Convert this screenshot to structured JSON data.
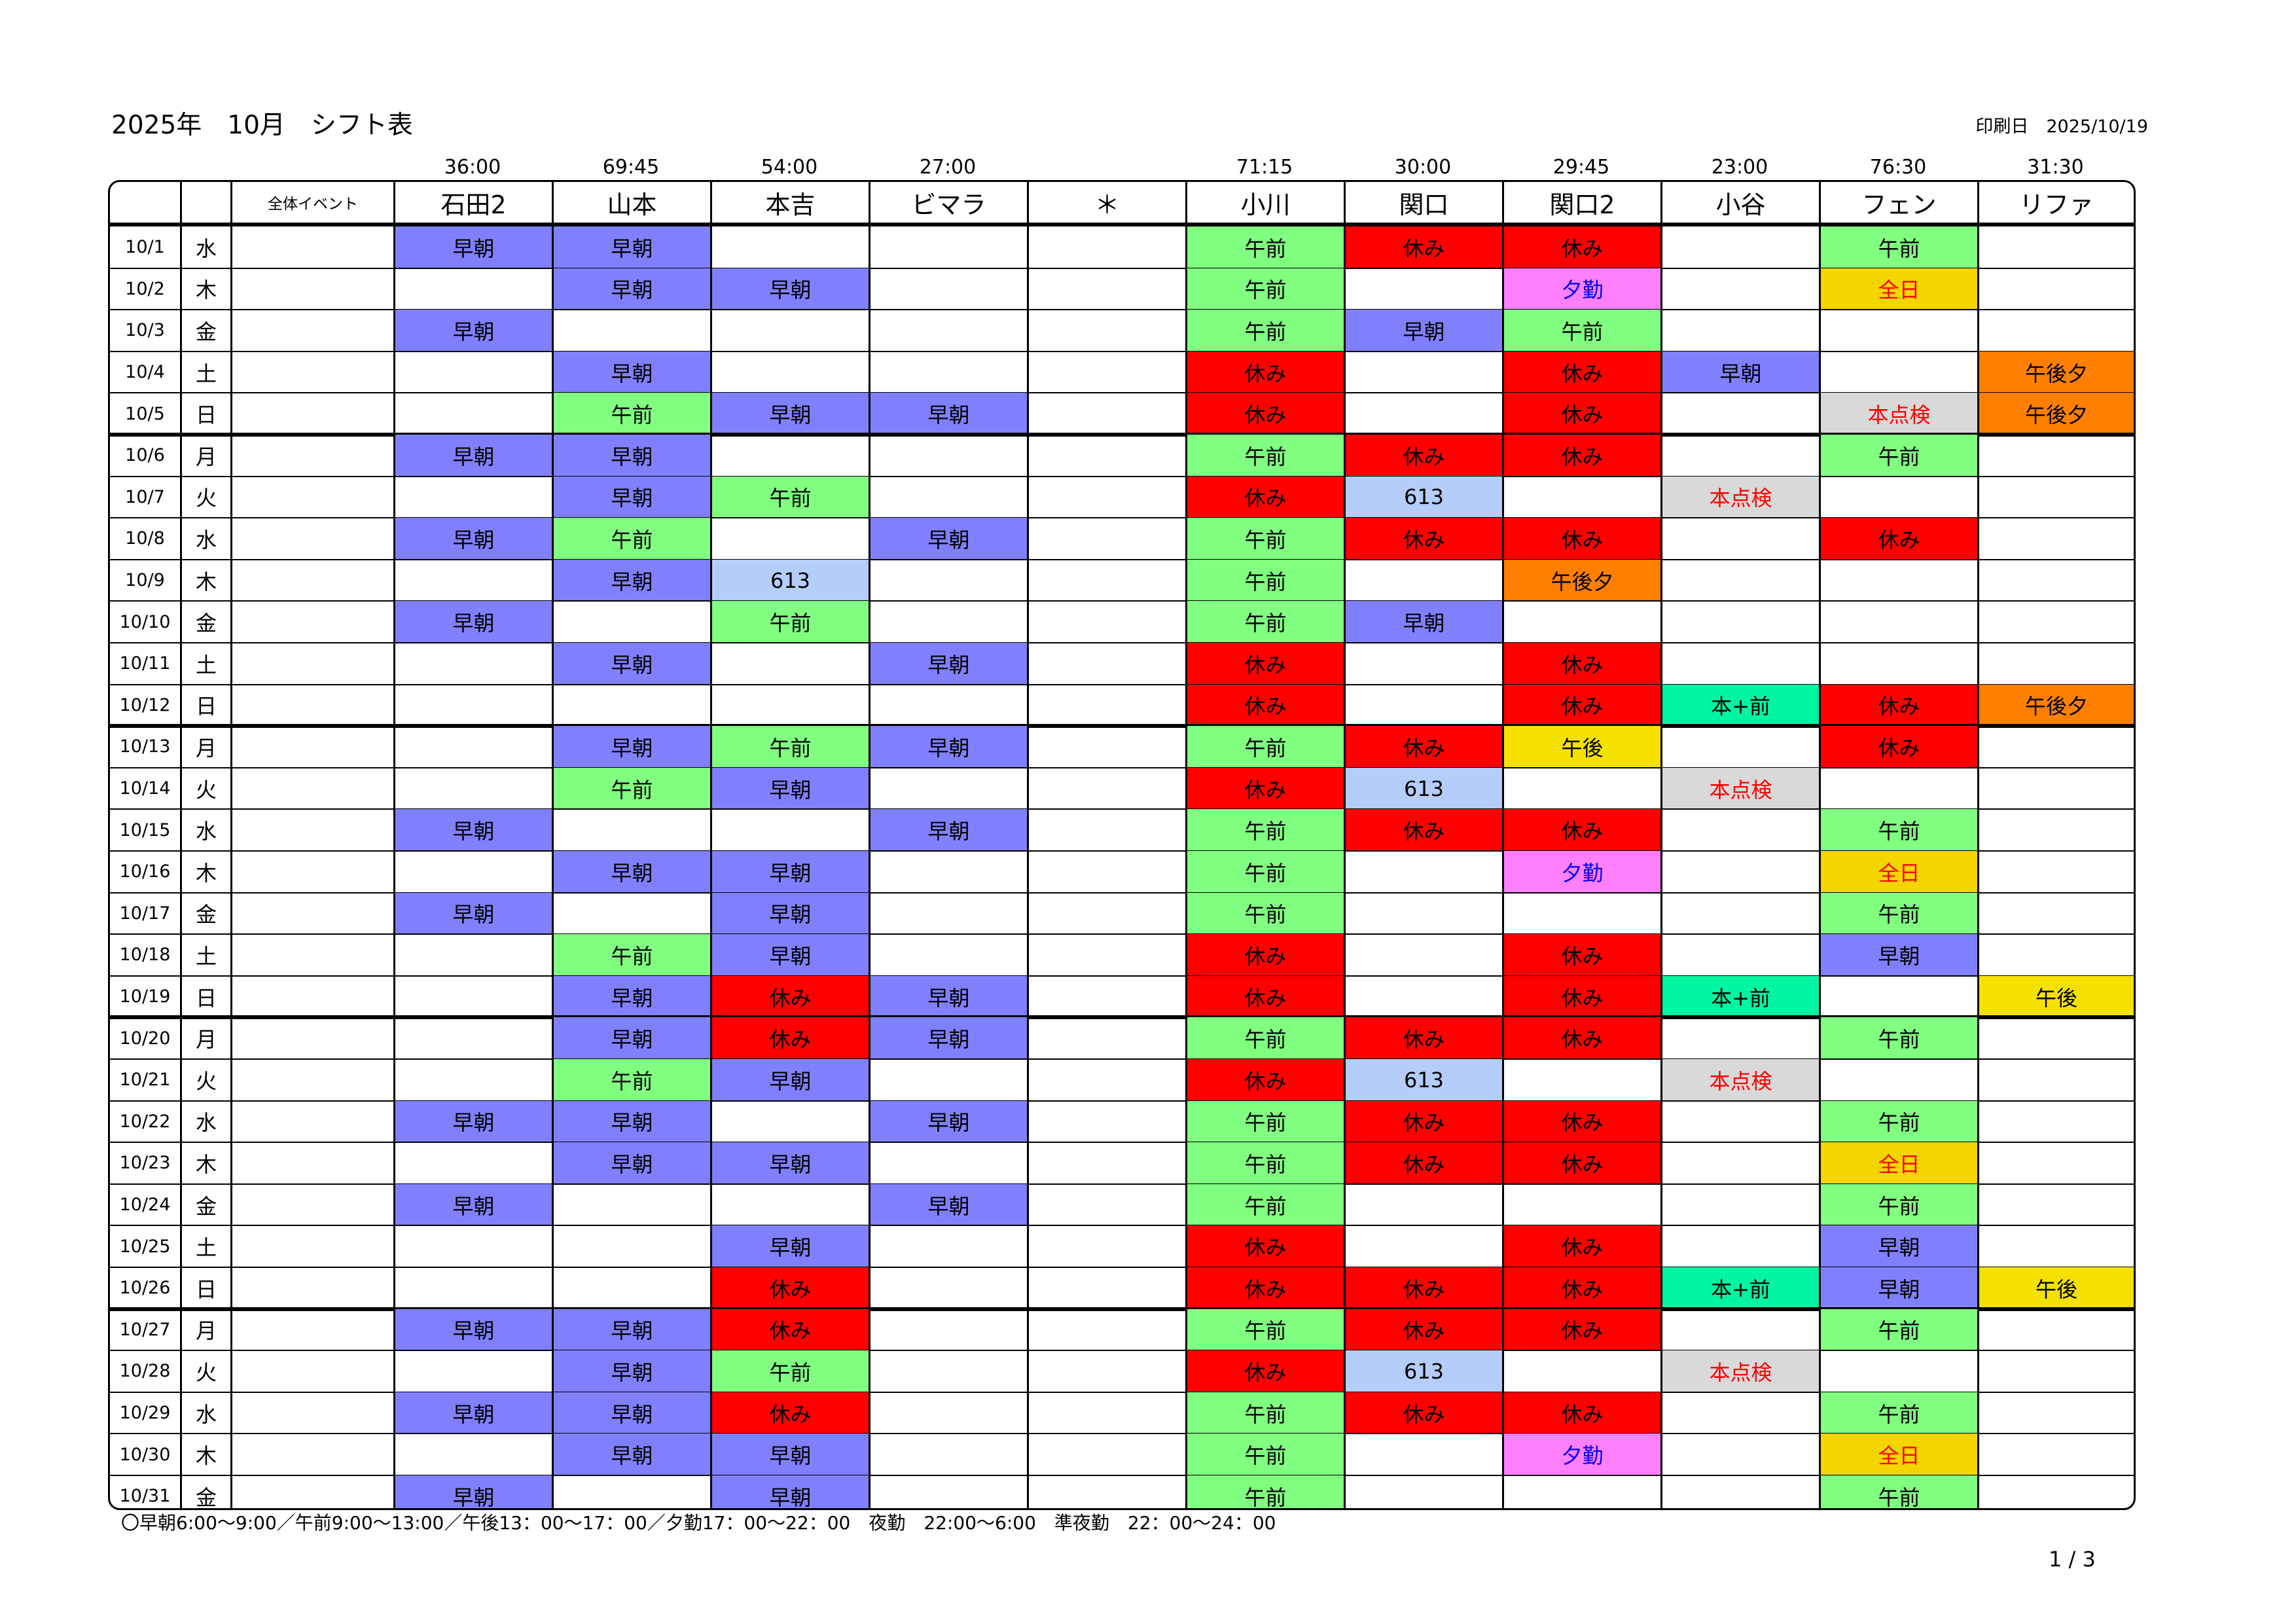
{
  "title": "2025年　10月　シフト表",
  "print_date": "印刷日　2025/10/19",
  "header": {
    "event_label": "全体イベント",
    "staff": [
      {
        "name": "石田2",
        "hours": "36:00"
      },
      {
        "name": "山本",
        "hours": "69:45"
      },
      {
        "name": "本吉",
        "hours": "54:00"
      },
      {
        "name": "ビマラ",
        "hours": "27:00"
      },
      {
        "name": "＊",
        "hours": ""
      },
      {
        "name": "小川",
        "hours": "71:15"
      },
      {
        "name": "関口",
        "hours": "30:00"
      },
      {
        "name": "関口2",
        "hours": "29:45"
      },
      {
        "name": "小谷",
        "hours": "23:00"
      },
      {
        "name": "フェン",
        "hours": "76:30"
      },
      {
        "name": "リファ",
        "hours": "31:30"
      }
    ]
  },
  "shift_styles": {
    "早朝": {
      "bg": "#8080ff",
      "color": "#000000"
    },
    "午前": {
      "bg": "#80ff80",
      "color": "#000000"
    },
    "休み": {
      "bg": "#ff0000",
      "color": "#000000"
    },
    "夕勤": {
      "bg": "#ff80ff",
      "color": "#0000ff"
    },
    "全日": {
      "bg": "#f5d500",
      "color": "#ff0000"
    },
    "午後夕": {
      "bg": "#ff7f00",
      "color": "#000000"
    },
    "本点検": {
      "bg": "#d9d9d9",
      "color": "#ff0000"
    },
    "613": {
      "bg": "#b4cdfa",
      "color": "#000000"
    },
    "本+前": {
      "bg": "#00f5a0",
      "color": "#000000"
    },
    "午後": {
      "bg": "#f5e100",
      "color": "#000000"
    }
  },
  "rows": [
    {
      "date": "10/1",
      "dow": "水",
      "shifts": [
        "早朝",
        "早朝",
        "",
        "",
        "",
        "午前",
        "休み",
        "休み",
        "",
        "午前",
        ""
      ]
    },
    {
      "date": "10/2",
      "dow": "木",
      "shifts": [
        "",
        "早朝",
        "早朝",
        "",
        "",
        "午前",
        "",
        "夕勤",
        "",
        "全日",
        ""
      ]
    },
    {
      "date": "10/3",
      "dow": "金",
      "shifts": [
        "早朝",
        "",
        "",
        "",
        "",
        "午前",
        "早朝",
        "午前",
        "",
        "",
        ""
      ]
    },
    {
      "date": "10/4",
      "dow": "土",
      "shifts": [
        "",
        "早朝",
        "",
        "",
        "",
        "休み",
        "",
        "休み",
        "早朝",
        "",
        "午後夕"
      ]
    },
    {
      "date": "10/5",
      "dow": "日",
      "shifts": [
        "",
        "午前",
        "早朝",
        "早朝",
        "",
        "休み",
        "",
        "休み",
        "",
        "本点検",
        "午後夕"
      ]
    },
    {
      "date": "10/6",
      "dow": "月",
      "shifts": [
        "早朝",
        "早朝",
        "",
        "",
        "",
        "午前",
        "休み",
        "休み",
        "",
        "午前",
        ""
      ]
    },
    {
      "date": "10/7",
      "dow": "火",
      "shifts": [
        "",
        "早朝",
        "午前",
        "",
        "",
        "休み",
        "613",
        "",
        "本点検",
        "",
        ""
      ]
    },
    {
      "date": "10/8",
      "dow": "水",
      "shifts": [
        "早朝",
        "午前",
        "",
        "早朝",
        "",
        "午前",
        "休み",
        "休み",
        "",
        "休み",
        ""
      ]
    },
    {
      "date": "10/9",
      "dow": "木",
      "shifts": [
        "",
        "早朝",
        "613",
        "",
        "",
        "午前",
        "",
        "午後夕",
        "",
        "",
        ""
      ]
    },
    {
      "date": "10/10",
      "dow": "金",
      "shifts": [
        "早朝",
        "",
        "午前",
        "",
        "",
        "午前",
        "早朝",
        "",
        "",
        "",
        ""
      ]
    },
    {
      "date": "10/11",
      "dow": "土",
      "shifts": [
        "",
        "早朝",
        "",
        "早朝",
        "",
        "休み",
        "",
        "休み",
        "",
        "",
        ""
      ]
    },
    {
      "date": "10/12",
      "dow": "日",
      "shifts": [
        "",
        "",
        "",
        "",
        "",
        "休み",
        "",
        "休み",
        "本+前",
        "休み",
        "午後夕"
      ]
    },
    {
      "date": "10/13",
      "dow": "月",
      "shifts": [
        "",
        "早朝",
        "午前",
        "早朝",
        "",
        "午前",
        "休み",
        "午後",
        "",
        "休み",
        ""
      ]
    },
    {
      "date": "10/14",
      "dow": "火",
      "shifts": [
        "",
        "午前",
        "早朝",
        "",
        "",
        "休み",
        "613",
        "",
        "本点検",
        "",
        ""
      ]
    },
    {
      "date": "10/15",
      "dow": "水",
      "shifts": [
        "早朝",
        "",
        "",
        "早朝",
        "",
        "午前",
        "休み",
        "休み",
        "",
        "午前",
        ""
      ]
    },
    {
      "date": "10/16",
      "dow": "木",
      "shifts": [
        "",
        "早朝",
        "早朝",
        "",
        "",
        "午前",
        "",
        "夕勤",
        "",
        "全日",
        ""
      ]
    },
    {
      "date": "10/17",
      "dow": "金",
      "shifts": [
        "早朝",
        "",
        "早朝",
        "",
        "",
        "午前",
        "",
        "",
        "",
        "午前",
        ""
      ]
    },
    {
      "date": "10/18",
      "dow": "土",
      "shifts": [
        "",
        "午前",
        "早朝",
        "",
        "",
        "休み",
        "",
        "休み",
        "",
        "早朝",
        ""
      ]
    },
    {
      "date": "10/19",
      "dow": "日",
      "shifts": [
        "",
        "早朝",
        "休み",
        "早朝",
        "",
        "休み",
        "",
        "休み",
        "本+前",
        "",
        "午後"
      ]
    },
    {
      "date": "10/20",
      "dow": "月",
      "shifts": [
        "",
        "早朝",
        "休み",
        "早朝",
        "",
        "午前",
        "休み",
        "休み",
        "",
        "午前",
        ""
      ]
    },
    {
      "date": "10/21",
      "dow": "火",
      "shifts": [
        "",
        "午前",
        "早朝",
        "",
        "",
        "休み",
        "613",
        "",
        "本点検",
        "",
        ""
      ]
    },
    {
      "date": "10/22",
      "dow": "水",
      "shifts": [
        "早朝",
        "早朝",
        "",
        "早朝",
        "",
        "午前",
        "休み",
        "休み",
        "",
        "午前",
        ""
      ]
    },
    {
      "date": "10/23",
      "dow": "木",
      "shifts": [
        "",
        "早朝",
        "早朝",
        "",
        "",
        "午前",
        "休み",
        "休み",
        "",
        "全日",
        ""
      ]
    },
    {
      "date": "10/24",
      "dow": "金",
      "shifts": [
        "早朝",
        "",
        "",
        "早朝",
        "",
        "午前",
        "",
        "",
        "",
        "午前",
        ""
      ]
    },
    {
      "date": "10/25",
      "dow": "土",
      "shifts": [
        "",
        "",
        "早朝",
        "",
        "",
        "休み",
        "",
        "休み",
        "",
        "早朝",
        ""
      ]
    },
    {
      "date": "10/26",
      "dow": "日",
      "shifts": [
        "",
        "",
        "休み",
        "",
        "",
        "休み",
        "休み",
        "休み",
        "本+前",
        "早朝",
        "午後"
      ]
    },
    {
      "date": "10/27",
      "dow": "月",
      "shifts": [
        "早朝",
        "早朝",
        "休み",
        "",
        "",
        "午前",
        "休み",
        "休み",
        "",
        "午前",
        ""
      ]
    },
    {
      "date": "10/28",
      "dow": "火",
      "shifts": [
        "",
        "早朝",
        "午前",
        "",
        "",
        "休み",
        "613",
        "",
        "本点検",
        "",
        ""
      ]
    },
    {
      "date": "10/29",
      "dow": "水",
      "shifts": [
        "早朝",
        "早朝",
        "休み",
        "",
        "",
        "午前",
        "休み",
        "休み",
        "",
        "午前",
        ""
      ]
    },
    {
      "date": "10/30",
      "dow": "木",
      "shifts": [
        "",
        "早朝",
        "早朝",
        "",
        "",
        "午前",
        "",
        "夕勤",
        "",
        "全日",
        ""
      ]
    },
    {
      "date": "10/31",
      "dow": "金",
      "shifts": [
        "早朝",
        "",
        "早朝",
        "",
        "",
        "午前",
        "",
        "",
        "",
        "午前",
        ""
      ]
    }
  ],
  "legend": "〇早朝6:00～9:00／午前9:00～13:00／午後13：00～17：00／夕勤17：00～22：00　夜勤　22:00～6:00　準夜勤　22：00～24：00",
  "page": "1 / 3"
}
